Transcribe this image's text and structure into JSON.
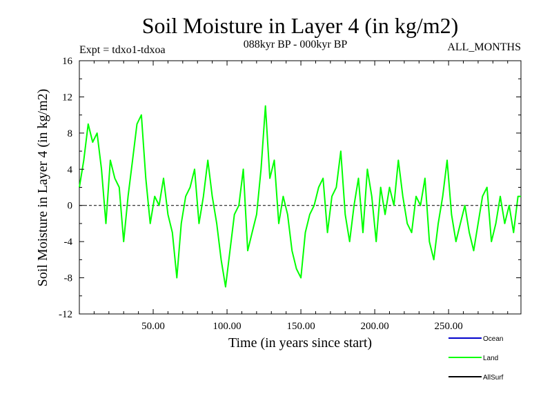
{
  "header": {
    "title": "Soil Moisture in Layer 4 (in kg/m2)",
    "expt": "Expt = tdxo1-tdxoa",
    "period": "088kyr BP - 000kyr BP",
    "months": "ALL_MONTHS"
  },
  "chart_data": {
    "type": "line",
    "xlabel": "Time (in years since start)",
    "ylabel": "Soil Moisture in Layer 4 (in kg/m2)",
    "xlim": [
      0,
      299
    ],
    "ylim": [
      -12,
      16
    ],
    "xticks": [
      50,
      100,
      150,
      200,
      250
    ],
    "xtick_labels": [
      "50.00",
      "100.00",
      "150.00",
      "200.00",
      "250.00"
    ],
    "yticks": [
      -12,
      -8,
      -4,
      0,
      4,
      8,
      12,
      16
    ],
    "ytick_labels": [
      "-12",
      "-8",
      "-4",
      "0",
      "4",
      "8",
      "12",
      "16"
    ],
    "zero_line": true,
    "grid": false,
    "legend_position": "bottom-right",
    "series": [
      {
        "name": "Ocean",
        "color": "#0000cc",
        "visible": false
      },
      {
        "name": "Land",
        "color": "#00ff00",
        "visible": true,
        "x": [
          0,
          3,
          6,
          9,
          12,
          15,
          18,
          21,
          24,
          27,
          30,
          33,
          36,
          39,
          42,
          45,
          48,
          51,
          54,
          57,
          60,
          63,
          66,
          69,
          72,
          75,
          78,
          81,
          84,
          87,
          90,
          93,
          96,
          99,
          102,
          105,
          108,
          111,
          114,
          117,
          120,
          123,
          126,
          129,
          132,
          135,
          138,
          141,
          144,
          147,
          150,
          153,
          156,
          159,
          162,
          165,
          168,
          171,
          174,
          177,
          180,
          183,
          186,
          189,
          192,
          195,
          198,
          201,
          204,
          207,
          210,
          213,
          216,
          219,
          222,
          225,
          228,
          231,
          234,
          237,
          240,
          243,
          246,
          249,
          252,
          255,
          258,
          261,
          264,
          267,
          270,
          273,
          276,
          279,
          282,
          285,
          288,
          291,
          294,
          297,
          299
        ],
        "y": [
          2,
          5,
          9,
          7,
          8,
          4,
          -2,
          5,
          3,
          2,
          -4,
          1,
          5,
          9,
          10,
          3,
          -2,
          1,
          0,
          3,
          -1,
          -3,
          -8,
          -2,
          1,
          2,
          4,
          -2,
          1,
          5,
          1,
          -2,
          -6,
          -9,
          -5,
          -1,
          0,
          4,
          -5,
          -3,
          -1,
          4,
          11,
          3,
          5,
          -2,
          1,
          -1,
          -5,
          -7,
          -8,
          -3,
          -1,
          0,
          2,
          3,
          -3,
          1,
          2,
          6,
          -1,
          -4,
          0,
          3,
          -3,
          4,
          1,
          -4,
          2,
          -1,
          2,
          0,
          5,
          1,
          -2,
          -3,
          1,
          0,
          3,
          -4,
          -6,
          -2,
          1,
          5,
          -1,
          -4,
          -2,
          0,
          -3,
          -5,
          -2,
          1,
          2,
          -4,
          -2,
          1,
          -2,
          0,
          -3,
          1,
          1
        ]
      },
      {
        "name": "AllSurf",
        "color": "#000000",
        "visible": false
      }
    ]
  }
}
